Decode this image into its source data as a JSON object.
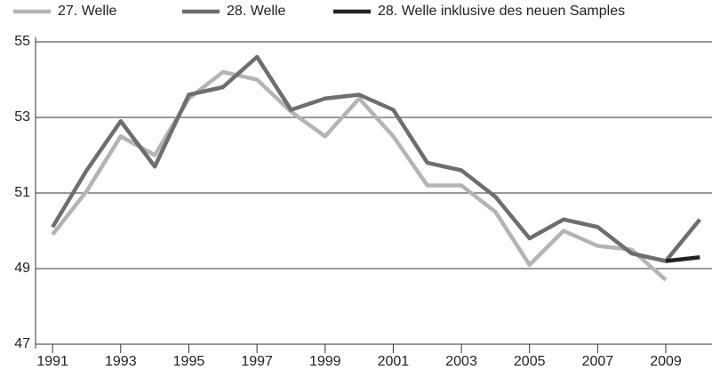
{
  "chart_data": {
    "type": "line",
    "x": [
      1991,
      1992,
      1993,
      1994,
      1995,
      1996,
      1997,
      1998,
      1999,
      2000,
      2001,
      2002,
      2003,
      2004,
      2005,
      2006,
      2007,
      2008,
      2009,
      2010
    ],
    "series": [
      {
        "name": "27. Welle",
        "color": "#b4b4b4",
        "values": [
          49.9,
          51.05,
          52.5,
          52.0,
          53.5,
          54.2,
          54.0,
          53.15,
          52.5,
          53.5,
          52.5,
          51.2,
          51.2,
          50.5,
          49.1,
          50.0,
          49.6,
          49.5,
          48.7,
          null
        ]
      },
      {
        "name": "28. Welle",
        "color": "#6e6e6e",
        "values": [
          50.1,
          51.6,
          52.9,
          51.7,
          53.6,
          53.8,
          54.6,
          53.2,
          53.5,
          53.6,
          53.2,
          51.8,
          51.6,
          50.9,
          49.8,
          50.3,
          50.1,
          49.4,
          49.2,
          50.3
        ]
      },
      {
        "name": "28. Welle inklusive des neuen Samples",
        "color": "#222222",
        "values": [
          null,
          null,
          null,
          null,
          null,
          null,
          null,
          null,
          null,
          null,
          null,
          null,
          null,
          null,
          null,
          null,
          null,
          null,
          49.2,
          49.3
        ]
      }
    ],
    "xlim": [
      1990.5,
      2010.2
    ],
    "xticks": [
      1991,
      1993,
      1995,
      1997,
      1999,
      2001,
      2003,
      2005,
      2007,
      2009
    ],
    "ylim": [
      47,
      55
    ],
    "yticks": [
      47,
      49,
      51,
      53,
      55
    ],
    "grid": true,
    "legend": "top"
  }
}
